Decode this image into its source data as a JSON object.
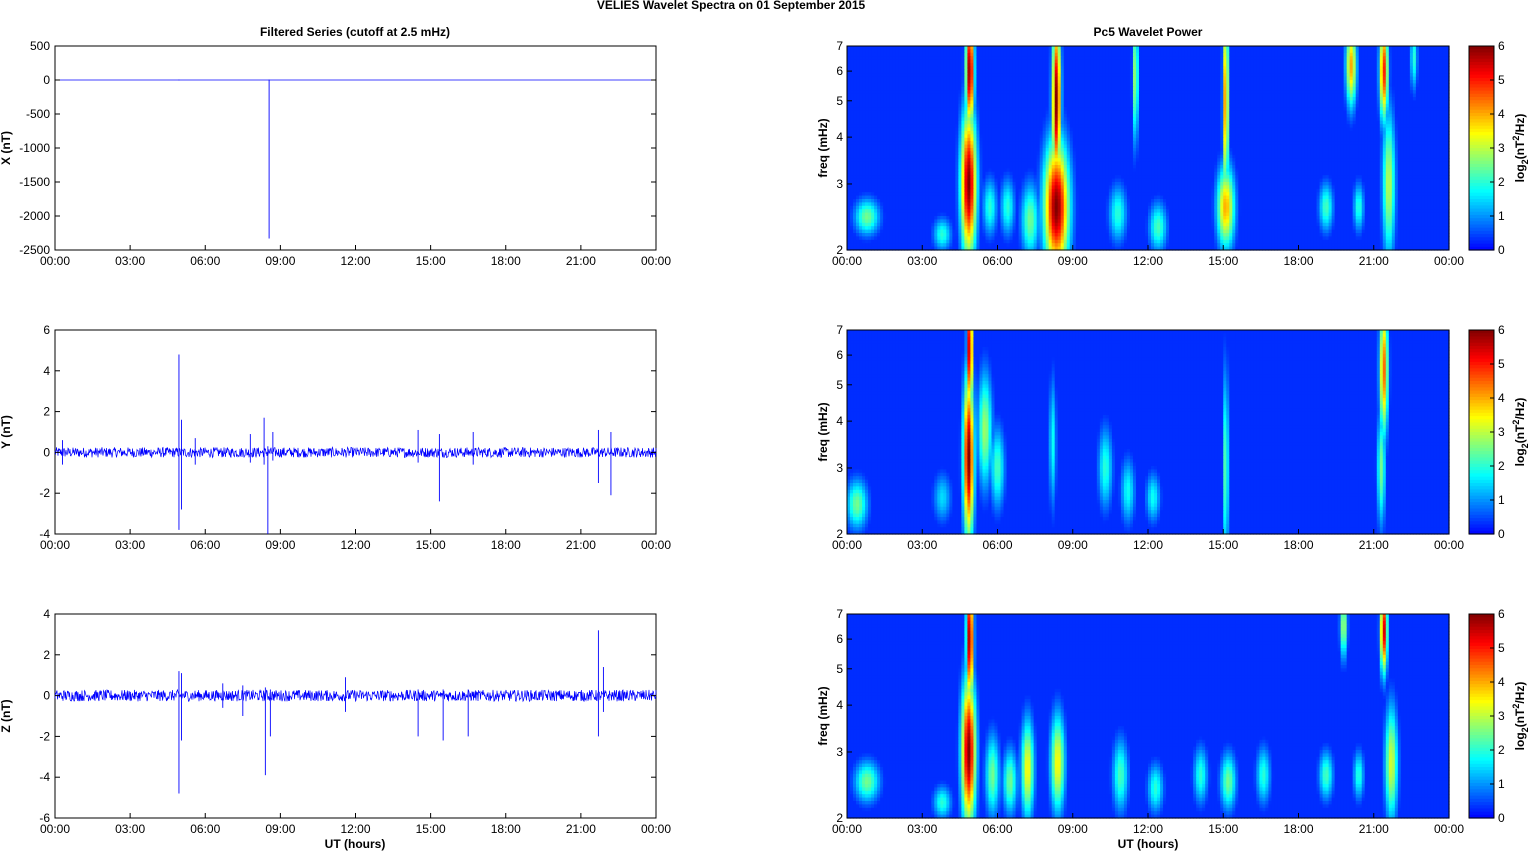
{
  "figure": {
    "title": "VELIES Wavelet Spectra on 01 September 2015",
    "left_title": "Filtered Series (cutoff at 2.5 mHz)",
    "right_title": "Pc5 Wavelet Power",
    "xlabel": "UT (hours)"
  },
  "chart_data": [
    {
      "type": "line",
      "panel": "X",
      "ylabel": "X (nT)",
      "x_ticks": [
        "00:00",
        "03:00",
        "06:00",
        "09:00",
        "12:00",
        "15:00",
        "18:00",
        "21:00",
        "00:00"
      ],
      "xlim_hours": [
        0,
        24
      ],
      "ylim": [
        -2500,
        500
      ],
      "y_ticks": [
        "500",
        "0",
        "-500",
        "-1000",
        "-1500",
        "-2000",
        "-2500"
      ],
      "y_tick_values": [
        500,
        0,
        -500,
        -1000,
        -1500,
        -2000,
        -2500
      ],
      "baseline": 0,
      "spikes": [
        {
          "x": 4.95,
          "min": -5,
          "max": 5
        },
        {
          "x": 8.55,
          "min": -2330,
          "max": 5
        }
      ],
      "color": "#0000ff"
    },
    {
      "type": "line",
      "panel": "Y",
      "ylabel": "Y (nT)",
      "x_ticks": [
        "00:00",
        "03:00",
        "06:00",
        "09:00",
        "12:00",
        "15:00",
        "18:00",
        "21:00",
        "00:00"
      ],
      "xlim_hours": [
        0,
        24
      ],
      "ylim": [
        -4,
        6
      ],
      "y_ticks": [
        "6",
        "4",
        "2",
        "0",
        "-2",
        "-4"
      ],
      "y_tick_values": [
        6,
        4,
        2,
        0,
        -2,
        -4
      ],
      "noise_amplitude": 0.25,
      "spikes": [
        {
          "x": 0.3,
          "min": -0.6,
          "max": 0.6
        },
        {
          "x": 4.95,
          "min": -3.8,
          "max": 4.8
        },
        {
          "x": 5.05,
          "min": -2.8,
          "max": 1.6
        },
        {
          "x": 5.6,
          "min": -0.6,
          "max": 0.7
        },
        {
          "x": 7.8,
          "min": -0.5,
          "max": 0.9
        },
        {
          "x": 8.35,
          "min": -0.6,
          "max": 1.7
        },
        {
          "x": 8.5,
          "min": -4.0,
          "max": 0.3
        },
        {
          "x": 8.7,
          "min": -0.4,
          "max": 1.0
        },
        {
          "x": 14.5,
          "min": -0.5,
          "max": 1.1
        },
        {
          "x": 15.35,
          "min": -2.4,
          "max": 0.9
        },
        {
          "x": 16.7,
          "min": -0.6,
          "max": 1.0
        },
        {
          "x": 21.7,
          "min": -1.5,
          "max": 1.1
        },
        {
          "x": 22.2,
          "min": -2.1,
          "max": 1.0
        }
      ],
      "color": "#0000ff"
    },
    {
      "type": "line",
      "panel": "Z",
      "ylabel": "Z (nT)",
      "x_ticks": [
        "00:00",
        "03:00",
        "06:00",
        "09:00",
        "12:00",
        "15:00",
        "18:00",
        "21:00",
        "00:00"
      ],
      "xlim_hours": [
        0,
        24
      ],
      "ylim": [
        -6,
        4
      ],
      "y_ticks": [
        "4",
        "2",
        "0",
        "-2",
        "-4",
        "-6"
      ],
      "y_tick_values": [
        4,
        2,
        0,
        -2,
        -4,
        -6
      ],
      "noise_amplitude": 0.28,
      "spikes": [
        {
          "x": 4.95,
          "min": -4.8,
          "max": 1.2
        },
        {
          "x": 5.05,
          "min": -2.2,
          "max": 1.1
        },
        {
          "x": 6.7,
          "min": -0.6,
          "max": 0.6
        },
        {
          "x": 7.5,
          "min": -1.0,
          "max": 0.5
        },
        {
          "x": 8.4,
          "min": -3.9,
          "max": 0.4
        },
        {
          "x": 8.6,
          "min": -2.0,
          "max": 0.3
        },
        {
          "x": 11.6,
          "min": -0.8,
          "max": 0.9
        },
        {
          "x": 14.5,
          "min": -2.0,
          "max": 0.3
        },
        {
          "x": 15.5,
          "min": -2.2,
          "max": 0.3
        },
        {
          "x": 16.5,
          "min": -2.0,
          "max": 0.3
        },
        {
          "x": 21.7,
          "min": -2.0,
          "max": 3.2
        },
        {
          "x": 21.9,
          "min": -0.8,
          "max": 1.4
        }
      ],
      "color": "#0000ff"
    },
    {
      "type": "heatmap",
      "panel": "X-wavelet",
      "ylabel": "freq (mHz)",
      "y_scale": "log",
      "ylim": [
        2,
        7
      ],
      "y_ticks": [
        "7",
        "6",
        "5",
        "4",
        "3",
        "2"
      ],
      "y_tick_values": [
        7,
        6,
        5,
        4,
        3,
        2
      ],
      "x_ticks": [
        "00:00",
        "03:00",
        "06:00",
        "09:00",
        "12:00",
        "15:00",
        "18:00",
        "21:00",
        "00:00"
      ],
      "xlim_hours": [
        0,
        24
      ],
      "colormap": "jet",
      "clim": [
        0,
        6
      ],
      "colorbar_ticks": [
        "6",
        "5",
        "4",
        "3",
        "2",
        "1",
        "0"
      ],
      "colorbar_label": "log2(nT2/Hz)",
      "blobs": [
        {
          "t": 0.8,
          "f": 2.45,
          "v": 2.5,
          "w": 0.35,
          "h": 0.22
        },
        {
          "t": 4.85,
          "f": 3.0,
          "v": 6.0,
          "w": 0.22,
          "h": 0.9
        },
        {
          "t": 4.9,
          "f": 6.0,
          "v": 6.0,
          "w": 0.12,
          "h": 0.7
        },
        {
          "t": 3.8,
          "f": 2.2,
          "v": 2.0,
          "w": 0.25,
          "h": 0.2
        },
        {
          "t": 5.7,
          "f": 2.6,
          "v": 2.0,
          "w": 0.2,
          "h": 0.35
        },
        {
          "t": 6.4,
          "f": 2.6,
          "v": 2.0,
          "w": 0.2,
          "h": 0.35
        },
        {
          "t": 7.3,
          "f": 2.4,
          "v": 2.5,
          "w": 0.25,
          "h": 0.45
        },
        {
          "t": 8.35,
          "f": 2.6,
          "v": 6.0,
          "w": 0.35,
          "h": 0.8
        },
        {
          "t": 8.35,
          "f": 5.0,
          "v": 6.0,
          "w": 0.12,
          "h": 1.0
        },
        {
          "t": 10.8,
          "f": 2.5,
          "v": 2.0,
          "w": 0.25,
          "h": 0.35
        },
        {
          "t": 11.5,
          "f": 5.8,
          "v": 3.0,
          "w": 0.08,
          "h": 0.8
        },
        {
          "t": 12.4,
          "f": 2.3,
          "v": 2.2,
          "w": 0.25,
          "h": 0.3
        },
        {
          "t": 15.1,
          "f": 2.6,
          "v": 4.0,
          "w": 0.25,
          "h": 0.5
        },
        {
          "t": 15.1,
          "f": 5.0,
          "v": 4.5,
          "w": 0.08,
          "h": 1.2
        },
        {
          "t": 19.1,
          "f": 2.6,
          "v": 2.2,
          "w": 0.2,
          "h": 0.3
        },
        {
          "t": 20.1,
          "f": 6.2,
          "v": 4.0,
          "w": 0.15,
          "h": 0.5
        },
        {
          "t": 20.4,
          "f": 2.6,
          "v": 2.0,
          "w": 0.15,
          "h": 0.3
        },
        {
          "t": 21.4,
          "f": 6.0,
          "v": 5.0,
          "w": 0.12,
          "h": 0.6
        },
        {
          "t": 21.6,
          "f": 3.0,
          "v": 3.0,
          "w": 0.18,
          "h": 0.9
        },
        {
          "t": 22.6,
          "f": 6.5,
          "v": 2.0,
          "w": 0.1,
          "h": 0.4
        }
      ]
    },
    {
      "type": "heatmap",
      "panel": "Y-wavelet",
      "ylabel": "freq (mHz)",
      "y_scale": "log",
      "ylim": [
        2,
        7
      ],
      "y_ticks": [
        "7",
        "6",
        "5",
        "4",
        "3",
        "2"
      ],
      "y_tick_values": [
        7,
        6,
        5,
        4,
        3,
        2
      ],
      "x_ticks": [
        "00:00",
        "03:00",
        "06:00",
        "09:00",
        "12:00",
        "15:00",
        "18:00",
        "21:00",
        "00:00"
      ],
      "xlim_hours": [
        0,
        24
      ],
      "colormap": "jet",
      "clim": [
        0,
        6
      ],
      "colorbar_ticks": [
        "6",
        "5",
        "4",
        "3",
        "2",
        "1",
        "0"
      ],
      "colorbar_label": "log2(nT2/Hz)",
      "blobs": [
        {
          "t": 0.4,
          "f": 2.4,
          "v": 2.5,
          "w": 0.3,
          "h": 0.3
        },
        {
          "t": 4.85,
          "f": 3.2,
          "v": 6.0,
          "w": 0.15,
          "h": 1.0
        },
        {
          "t": 4.9,
          "f": 6.2,
          "v": 6.0,
          "w": 0.08,
          "h": 0.8
        },
        {
          "t": 5.5,
          "f": 3.8,
          "v": 2.8,
          "w": 0.2,
          "h": 0.7
        },
        {
          "t": 6.0,
          "f": 3.0,
          "v": 2.2,
          "w": 0.2,
          "h": 0.5
        },
        {
          "t": 3.8,
          "f": 2.5,
          "v": 1.5,
          "w": 0.25,
          "h": 0.3
        },
        {
          "t": 8.2,
          "f": 3.5,
          "v": 1.8,
          "w": 0.1,
          "h": 0.8
        },
        {
          "t": 10.3,
          "f": 3.0,
          "v": 2.0,
          "w": 0.2,
          "h": 0.5
        },
        {
          "t": 11.2,
          "f": 2.6,
          "v": 1.8,
          "w": 0.2,
          "h": 0.4
        },
        {
          "t": 12.2,
          "f": 2.5,
          "v": 1.8,
          "w": 0.2,
          "h": 0.3
        },
        {
          "t": 15.1,
          "f": 3.0,
          "v": 2.5,
          "w": 0.08,
          "h": 1.2
        },
        {
          "t": 21.4,
          "f": 5.5,
          "v": 4.5,
          "w": 0.12,
          "h": 0.8
        },
        {
          "t": 21.3,
          "f": 3.0,
          "v": 2.5,
          "w": 0.12,
          "h": 0.7
        }
      ]
    },
    {
      "type": "heatmap",
      "panel": "Z-wavelet",
      "ylabel": "freq (mHz)",
      "y_scale": "log",
      "ylim": [
        2,
        7
      ],
      "y_ticks": [
        "7",
        "6",
        "5",
        "4",
        "3",
        "2"
      ],
      "y_tick_values": [
        7,
        6,
        5,
        4,
        3,
        2
      ],
      "x_ticks": [
        "00:00",
        "03:00",
        "06:00",
        "09:00",
        "12:00",
        "15:00",
        "18:00",
        "21:00",
        "00:00"
      ],
      "xlim_hours": [
        0,
        24
      ],
      "colormap": "jet",
      "clim": [
        0,
        6
      ],
      "colorbar_ticks": [
        "6",
        "5",
        "4",
        "3",
        "2",
        "1",
        "0"
      ],
      "colorbar_label": "log2(nT2/Hz)",
      "blobs": [
        {
          "t": 0.8,
          "f": 2.5,
          "v": 2.5,
          "w": 0.35,
          "h": 0.25
        },
        {
          "t": 4.85,
          "f": 3.0,
          "v": 6.0,
          "w": 0.2,
          "h": 0.9
        },
        {
          "t": 4.9,
          "f": 6.0,
          "v": 6.0,
          "w": 0.1,
          "h": 0.8
        },
        {
          "t": 3.8,
          "f": 2.2,
          "v": 2.0,
          "w": 0.25,
          "h": 0.2
        },
        {
          "t": 5.8,
          "f": 2.6,
          "v": 2.5,
          "w": 0.2,
          "h": 0.5
        },
        {
          "t": 6.5,
          "f": 2.5,
          "v": 2.5,
          "w": 0.2,
          "h": 0.4
        },
        {
          "t": 7.2,
          "f": 2.7,
          "v": 3.5,
          "w": 0.18,
          "h": 0.6
        },
        {
          "t": 8.4,
          "f": 2.8,
          "v": 3.5,
          "w": 0.2,
          "h": 0.6
        },
        {
          "t": 10.9,
          "f": 2.6,
          "v": 2.2,
          "w": 0.22,
          "h": 0.45
        },
        {
          "t": 12.3,
          "f": 2.4,
          "v": 2.0,
          "w": 0.22,
          "h": 0.3
        },
        {
          "t": 14.1,
          "f": 2.6,
          "v": 2.0,
          "w": 0.2,
          "h": 0.35
        },
        {
          "t": 15.2,
          "f": 2.5,
          "v": 2.5,
          "w": 0.22,
          "h": 0.35
        },
        {
          "t": 16.6,
          "f": 2.6,
          "v": 2.0,
          "w": 0.2,
          "h": 0.35
        },
        {
          "t": 19.1,
          "f": 2.6,
          "v": 2.2,
          "w": 0.2,
          "h": 0.3
        },
        {
          "t": 19.8,
          "f": 6.5,
          "v": 3.0,
          "w": 0.1,
          "h": 0.4
        },
        {
          "t": 21.4,
          "f": 6.3,
          "v": 5.5,
          "w": 0.1,
          "h": 0.5
        },
        {
          "t": 21.7,
          "f": 2.8,
          "v": 3.2,
          "w": 0.18,
          "h": 0.7
        },
        {
          "t": 20.4,
          "f": 2.6,
          "v": 2.0,
          "w": 0.15,
          "h": 0.3
        }
      ]
    }
  ]
}
